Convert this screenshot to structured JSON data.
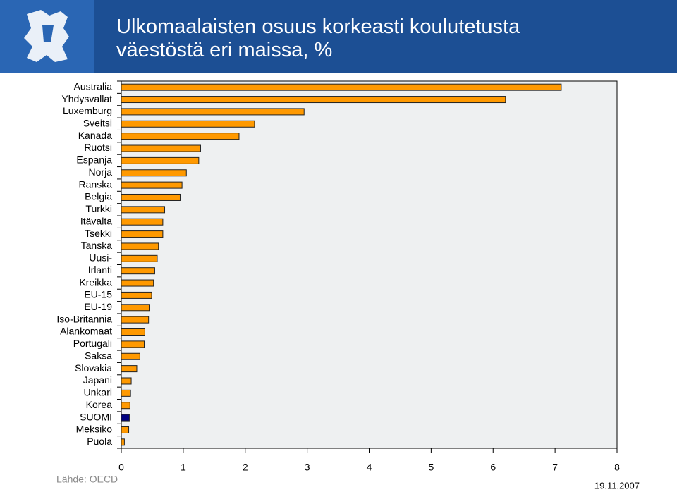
{
  "chart_data": {
    "type": "hbar",
    "title": "Ulkomaalaisten osuus korkeasti koulutetusta väestöstä eri maissa, %",
    "categories": [
      "Australia",
      "Yhdysvallat",
      "Luxemburg",
      "Sveitsi",
      "Kanada",
      "Ruotsi",
      "Espanja",
      "Norja",
      "Ranska",
      "Belgia",
      "Turkki",
      "Itävalta",
      "Tsekki",
      "Tanska",
      "Uusi-",
      "Irlanti",
      "Kreikka",
      "EU-15",
      "EU-19",
      "Iso-Britannia",
      "Alankomaat",
      "Portugali",
      "Saksa",
      "Slovakia",
      "Japani",
      "Unkari",
      "Korea",
      "SUOMI",
      "Meksiko",
      "Puola"
    ],
    "values": [
      7.1,
      6.2,
      2.95,
      2.15,
      1.9,
      1.28,
      1.25,
      1.05,
      0.98,
      0.95,
      0.7,
      0.67,
      0.67,
      0.6,
      0.58,
      0.54,
      0.52,
      0.49,
      0.45,
      0.44,
      0.38,
      0.37,
      0.3,
      0.25,
      0.16,
      0.15,
      0.14,
      0.13,
      0.12,
      0.05
    ],
    "colors": [
      "#ff9900",
      "#ff9900",
      "#ff9900",
      "#ff9900",
      "#ff9900",
      "#ff9900",
      "#ff9900",
      "#ff9900",
      "#ff9900",
      "#ff9900",
      "#ff9900",
      "#ff9900",
      "#ff9900",
      "#ff9900",
      "#ff9900",
      "#ff9900",
      "#ff9900",
      "#ff9900",
      "#ff9900",
      "#ff9900",
      "#ff9900",
      "#ff9900",
      "#ff9900",
      "#ff9900",
      "#ff9900",
      "#ff9900",
      "#ff9900",
      "#000080",
      "#ff9900",
      "#ff9900"
    ],
    "xlim": [
      0,
      8
    ],
    "xticks": [
      0,
      1,
      2,
      3,
      4,
      5,
      6,
      7,
      8
    ],
    "source": "Lähde: OECD",
    "date": "19.11.2007"
  }
}
